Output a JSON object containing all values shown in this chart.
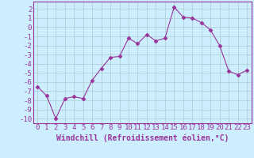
{
  "x": [
    0,
    1,
    2,
    3,
    4,
    5,
    6,
    7,
    8,
    9,
    10,
    11,
    12,
    13,
    14,
    15,
    16,
    17,
    18,
    19,
    20,
    21,
    22,
    23
  ],
  "y": [
    -6.5,
    -7.5,
    -10.0,
    -7.8,
    -7.6,
    -7.8,
    -5.8,
    -4.5,
    -3.3,
    -3.2,
    -1.2,
    -1.8,
    -0.8,
    -1.5,
    -1.2,
    2.2,
    1.1,
    1.0,
    0.5,
    -0.3,
    -2.0,
    -4.8,
    -5.2,
    -4.7
  ],
  "xlabel": "Windchill (Refroidissement éolien,°C)",
  "xlim": [
    -0.5,
    23.5
  ],
  "ylim": [
    -10.5,
    2.8
  ],
  "yticks": [
    2,
    1,
    0,
    -1,
    -2,
    -3,
    -4,
    -5,
    -6,
    -7,
    -8,
    -9,
    -10
  ],
  "xticks": [
    0,
    1,
    2,
    3,
    4,
    5,
    6,
    7,
    8,
    9,
    10,
    11,
    12,
    13,
    14,
    15,
    16,
    17,
    18,
    19,
    20,
    21,
    22,
    23
  ],
  "line_color": "#993399",
  "marker": "D",
  "marker_size": 2.5,
  "bg_color": "#cceeff",
  "grid_color": "#aacccc",
  "spine_color": "#993399",
  "tick_color": "#993399",
  "label_color": "#993399",
  "font_size": 6.5,
  "xlabel_fontsize": 7.0
}
